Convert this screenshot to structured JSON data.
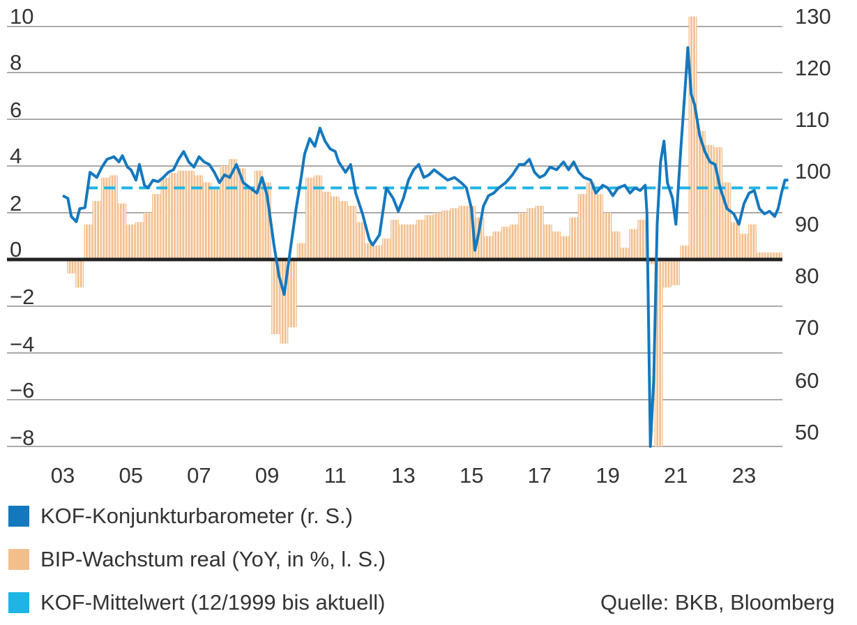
{
  "legend": {
    "items": [
      {
        "label": "KOF-Konjunkturbarometer (r. S.)",
        "color": "#1478be"
      },
      {
        "label": "BIP-Wachstum real (YoY, in %, l. S.)",
        "color": "#f2bf8c"
      },
      {
        "label": "KOF-Mittelwert (12/1999 bis aktuell)",
        "color": "#1eb4e4"
      }
    ]
  },
  "source": "Quelle: BKB, Bloomberg",
  "chart_data": {
    "type": "bar+line",
    "x_tick_labels": [
      "03",
      "05",
      "07",
      "09",
      "11",
      "13",
      "15",
      "17",
      "19",
      "21",
      "23"
    ],
    "left_axis": {
      "ticks": [
        "10",
        "8",
        "6",
        "4",
        "2",
        "0",
        "−2",
        "−4",
        "−6",
        "−8"
      ],
      "range": [
        -8,
        10
      ]
    },
    "right_axis": {
      "ticks": [
        "130",
        "120",
        "110",
        "100",
        "90",
        "80",
        "70",
        "60",
        "50"
      ],
      "range": [
        48,
        131
      ]
    },
    "series": [
      {
        "name": "BIP-Wachstum real (YoY, in %, l. S.)",
        "kind": "bar",
        "axis": "left",
        "color": "#f2bf8c",
        "points": [
          [
            2003.0,
            -0.6
          ],
          [
            2003.25,
            -1.2
          ],
          [
            2003.5,
            1.5
          ],
          [
            2003.75,
            2.5
          ],
          [
            2004.0,
            3.5
          ],
          [
            2004.25,
            3.6
          ],
          [
            2004.5,
            2.4
          ],
          [
            2004.75,
            1.5
          ],
          [
            2005.0,
            1.6
          ],
          [
            2005.25,
            2.0
          ],
          [
            2005.5,
            2.8
          ],
          [
            2005.75,
            3.5
          ],
          [
            2006.0,
            3.7
          ],
          [
            2006.25,
            3.8
          ],
          [
            2006.5,
            3.8
          ],
          [
            2006.75,
            3.6
          ],
          [
            2007.0,
            3.3
          ],
          [
            2007.25,
            3.0
          ],
          [
            2007.5,
            4.0
          ],
          [
            2007.75,
            4.3
          ],
          [
            2008.0,
            3.9
          ],
          [
            2008.25,
            3.0
          ],
          [
            2008.5,
            3.8
          ],
          [
            2008.75,
            3.3
          ],
          [
            2009.0,
            -3.2
          ],
          [
            2009.25,
            -3.6
          ],
          [
            2009.5,
            -2.9
          ],
          [
            2009.75,
            0.7
          ],
          [
            2010.0,
            3.5
          ],
          [
            2010.25,
            3.6
          ],
          [
            2010.5,
            2.9
          ],
          [
            2010.75,
            2.7
          ],
          [
            2011.0,
            2.5
          ],
          [
            2011.25,
            2.3
          ],
          [
            2011.5,
            1.6
          ],
          [
            2011.75,
            0.7
          ],
          [
            2012.0,
            0.6
          ],
          [
            2012.25,
            0.9
          ],
          [
            2012.5,
            1.7
          ],
          [
            2012.75,
            1.5
          ],
          [
            2013.0,
            1.5
          ],
          [
            2013.25,
            1.7
          ],
          [
            2013.5,
            1.9
          ],
          [
            2013.75,
            2.0
          ],
          [
            2014.0,
            2.1
          ],
          [
            2014.25,
            2.2
          ],
          [
            2014.5,
            2.3
          ],
          [
            2014.75,
            2.3
          ],
          [
            2015.0,
            1.8
          ],
          [
            2015.25,
            1.0
          ],
          [
            2015.5,
            1.2
          ],
          [
            2015.75,
            1.4
          ],
          [
            2016.0,
            1.5
          ],
          [
            2016.25,
            2.0
          ],
          [
            2016.5,
            2.2
          ],
          [
            2016.75,
            2.3
          ],
          [
            2017.0,
            1.5
          ],
          [
            2017.25,
            1.2
          ],
          [
            2017.5,
            1.0
          ],
          [
            2017.75,
            1.8
          ],
          [
            2018.0,
            2.8
          ],
          [
            2018.25,
            3.3
          ],
          [
            2018.5,
            2.8
          ],
          [
            2018.75,
            2.0
          ],
          [
            2019.0,
            1.2
          ],
          [
            2019.25,
            0.5
          ],
          [
            2019.5,
            1.3
          ],
          [
            2019.75,
            1.7
          ],
          [
            2020.0,
            -0.2
          ],
          [
            2020.25,
            -8.0
          ],
          [
            2020.5,
            -1.2
          ],
          [
            2020.75,
            -1.1
          ],
          [
            2021.0,
            0.6
          ],
          [
            2021.25,
            10.4
          ],
          [
            2021.5,
            5.5
          ],
          [
            2021.75,
            4.9
          ],
          [
            2022.0,
            4.8
          ],
          [
            2022.25,
            3.3
          ],
          [
            2022.5,
            1.6
          ],
          [
            2022.75,
            1.1
          ],
          [
            2023.0,
            1.5
          ],
          [
            2023.25,
            0.3
          ],
          [
            2023.5,
            0.3
          ],
          [
            2023.75,
            0.3
          ]
        ]
      },
      {
        "name": "KOF-Konjunkturbarometer (r. S.)",
        "kind": "line",
        "axis": "right",
        "color": "#1478be",
        "points": [
          [
            2003.0,
            95.5
          ],
          [
            2003.15,
            95.0
          ],
          [
            2003.25,
            91.5
          ],
          [
            2003.4,
            90.5
          ],
          [
            2003.5,
            93.0
          ],
          [
            2003.65,
            93.2
          ],
          [
            2003.8,
            100.0
          ],
          [
            2004.0,
            99.0
          ],
          [
            2004.15,
            101.0
          ],
          [
            2004.3,
            102.5
          ],
          [
            2004.5,
            103.0
          ],
          [
            2004.65,
            102.0
          ],
          [
            2004.75,
            103.2
          ],
          [
            2004.9,
            101.0
          ],
          [
            2005.0,
            100.5
          ],
          [
            2005.15,
            98.5
          ],
          [
            2005.25,
            101.5
          ],
          [
            2005.4,
            97.5
          ],
          [
            2005.5,
            97.0
          ],
          [
            2005.65,
            98.5
          ],
          [
            2005.8,
            98.2
          ],
          [
            2005.95,
            99.0
          ],
          [
            2006.1,
            100.0
          ],
          [
            2006.25,
            100.5
          ],
          [
            2006.4,
            102.5
          ],
          [
            2006.55,
            104.0
          ],
          [
            2006.7,
            102.0
          ],
          [
            2006.85,
            101.0
          ],
          [
            2007.0,
            103.0
          ],
          [
            2007.15,
            102.0
          ],
          [
            2007.3,
            101.5
          ],
          [
            2007.45,
            100.0
          ],
          [
            2007.6,
            98.0
          ],
          [
            2007.75,
            99.5
          ],
          [
            2007.9,
            99.0
          ],
          [
            2008.1,
            101.5
          ],
          [
            2008.3,
            98.0
          ],
          [
            2008.5,
            97.0
          ],
          [
            2008.7,
            96.0
          ],
          [
            2008.85,
            99.0
          ],
          [
            2009.0,
            95.5
          ],
          [
            2009.2,
            86.0
          ],
          [
            2009.35,
            80.0
          ],
          [
            2009.5,
            76.5
          ],
          [
            2009.7,
            86.0
          ],
          [
            2009.85,
            93.0
          ],
          [
            2010.0,
            99.0
          ],
          [
            2010.1,
            103.5
          ],
          [
            2010.25,
            106.5
          ],
          [
            2010.4,
            105.0
          ],
          [
            2010.55,
            108.5
          ],
          [
            2010.7,
            106.0
          ],
          [
            2010.85,
            104.5
          ],
          [
            2011.0,
            104.0
          ],
          [
            2011.1,
            102.0
          ],
          [
            2011.3,
            100.0
          ],
          [
            2011.45,
            101.5
          ],
          [
            2011.6,
            96.0
          ],
          [
            2011.8,
            92.0
          ],
          [
            2012.0,
            87.0
          ],
          [
            2012.1,
            86.0
          ],
          [
            2012.3,
            88.0
          ],
          [
            2012.5,
            97.0
          ],
          [
            2012.7,
            95.0
          ],
          [
            2012.85,
            92.5
          ],
          [
            2013.0,
            95.0
          ],
          [
            2013.15,
            98.5
          ],
          [
            2013.3,
            100.5
          ],
          [
            2013.45,
            101.5
          ],
          [
            2013.6,
            99.0
          ],
          [
            2013.75,
            99.5
          ],
          [
            2013.9,
            100.5
          ],
          [
            2014.1,
            99.5
          ],
          [
            2014.3,
            98.5
          ],
          [
            2014.5,
            99.0
          ],
          [
            2014.7,
            98.0
          ],
          [
            2014.85,
            97.0
          ],
          [
            2015.0,
            93.0
          ],
          [
            2015.1,
            85.0
          ],
          [
            2015.2,
            88.0
          ],
          [
            2015.35,
            93.5
          ],
          [
            2015.5,
            95.5
          ],
          [
            2015.65,
            96.0
          ],
          [
            2015.8,
            97.0
          ],
          [
            2016.0,
            98.0
          ],
          [
            2016.2,
            99.5
          ],
          [
            2016.4,
            101.5
          ],
          [
            2016.55,
            101.5
          ],
          [
            2016.7,
            102.5
          ],
          [
            2016.85,
            100.0
          ],
          [
            2017.0,
            99.0
          ],
          [
            2017.15,
            99.5
          ],
          [
            2017.3,
            101.0
          ],
          [
            2017.5,
            100.5
          ],
          [
            2017.7,
            102.0
          ],
          [
            2017.85,
            100.5
          ],
          [
            2018.0,
            102.0
          ],
          [
            2018.15,
            100.0
          ],
          [
            2018.3,
            99.0
          ],
          [
            2018.5,
            98.5
          ],
          [
            2018.65,
            96.0
          ],
          [
            2018.85,
            97.5
          ],
          [
            2019.0,
            97.0
          ],
          [
            2019.15,
            95.5
          ],
          [
            2019.3,
            97.0
          ],
          [
            2019.5,
            97.5
          ],
          [
            2019.65,
            96.0
          ],
          [
            2019.8,
            97.0
          ],
          [
            2019.95,
            96.5
          ],
          [
            2020.1,
            97.5
          ],
          [
            2020.15,
            92.0
          ],
          [
            2020.25,
            45.0
          ],
          [
            2020.35,
            60.0
          ],
          [
            2020.45,
            90.0
          ],
          [
            2020.55,
            102.0
          ],
          [
            2020.65,
            106.0
          ],
          [
            2020.75,
            98.0
          ],
          [
            2020.9,
            95.0
          ],
          [
            2021.0,
            90.0
          ],
          [
            2021.15,
            105.0
          ],
          [
            2021.3,
            119.0
          ],
          [
            2021.35,
            124.0
          ],
          [
            2021.45,
            115.0
          ],
          [
            2021.55,
            113.0
          ],
          [
            2021.7,
            107.0
          ],
          [
            2021.85,
            104.0
          ],
          [
            2022.0,
            102.0
          ],
          [
            2022.15,
            101.5
          ],
          [
            2022.3,
            97.0
          ],
          [
            2022.5,
            93.0
          ],
          [
            2022.7,
            92.0
          ],
          [
            2022.85,
            90.0
          ],
          [
            2023.0,
            94.0
          ],
          [
            2023.15,
            96.0
          ],
          [
            2023.3,
            96.5
          ],
          [
            2023.45,
            93.0
          ],
          [
            2023.6,
            92.0
          ],
          [
            2023.75,
            92.5
          ],
          [
            2023.9,
            91.5
          ],
          [
            2024.0,
            93.0
          ],
          [
            2024.1,
            96.0
          ],
          [
            2024.2,
            98.5
          ],
          [
            2024.3,
            98.5
          ]
        ]
      },
      {
        "name": "KOF-Mittelwert (12/1999 bis aktuell)",
        "kind": "dashed-line",
        "axis": "right",
        "color": "#1eb4e4",
        "points": [
          [
            2003.7,
            97.0
          ],
          [
            2024.3,
            97.0
          ]
        ]
      }
    ]
  }
}
